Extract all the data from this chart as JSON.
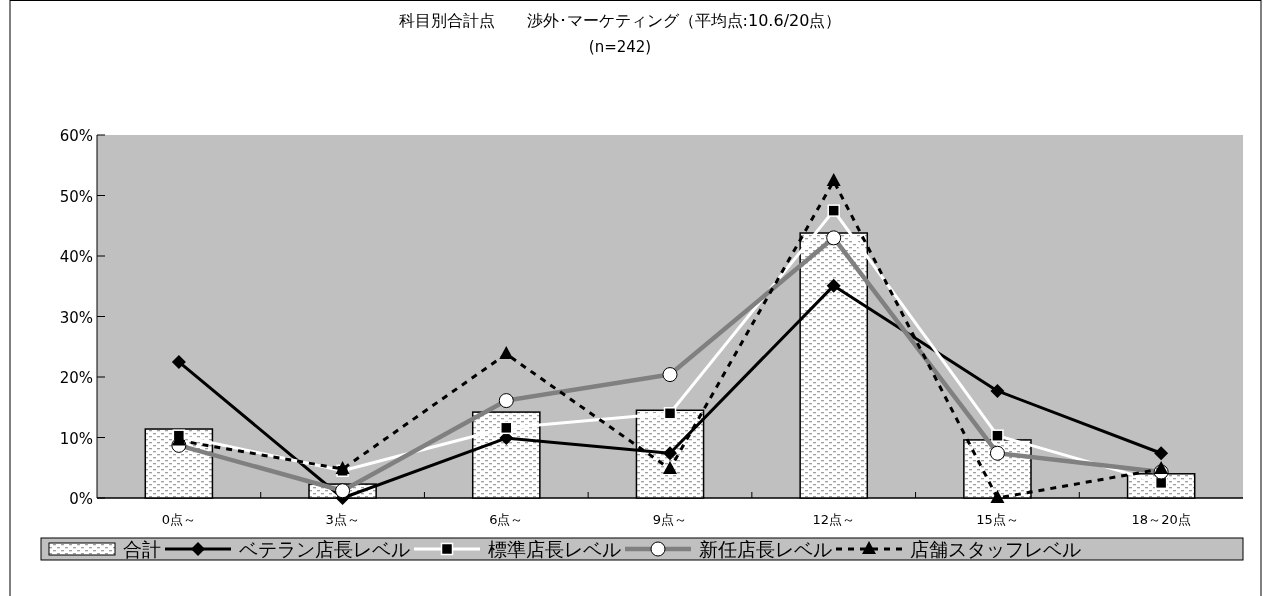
{
  "chart_data": {
    "type": "bar",
    "title": "科目別合計点　　渉外･マーケティング（平均点:10.6/20点）",
    "subtitle": "(n=242)",
    "categories": [
      "0点～",
      "3点～",
      "6点～",
      "9点～",
      "12点～",
      "15点～",
      "18～20点"
    ],
    "ylim": [
      0,
      60
    ],
    "yticks": [
      {
        "value": 0,
        "label": "0%"
      },
      {
        "value": 10,
        "label": "10%"
      },
      {
        "value": 20,
        "label": "20%"
      },
      {
        "value": 30,
        "label": "30%"
      },
      {
        "value": 40,
        "label": "40%"
      },
      {
        "value": 50,
        "label": "50%"
      },
      {
        "value": 60,
        "label": "60%"
      }
    ],
    "grid": false,
    "legend": "bottom",
    "series": [
      {
        "name": "合計",
        "color": "#000000",
        "values": [
          11.4,
          2.3,
          14.2,
          14.5,
          43.8,
          9.6,
          4.0
        ]
      },
      {
        "name": "ベテラン店長レベル",
        "type": "line",
        "color": "#000000",
        "marker": "diamond",
        "line_style": "solid",
        "values": [
          22.5,
          0,
          9.9,
          7.4,
          35.1,
          17.7,
          7.4
        ]
      },
      {
        "name": "標準店長レベル",
        "type": "line",
        "color": "#ffffff",
        "marker": "square",
        "line_style": "solid",
        "values": [
          10.3,
          4.5,
          11.6,
          14.0,
          47.5,
          10.3,
          2.5
        ]
      },
      {
        "name": "新任店長レベル",
        "type": "line",
        "color": "#808080",
        "marker": "circle",
        "line_style": "solid",
        "values": [
          8.7,
          1.2,
          16.1,
          20.4,
          43.0,
          7.4,
          4.3
        ]
      },
      {
        "name": "店舗スタッフレベル",
        "type": "line",
        "color": "#000000",
        "marker": "triangle",
        "line_style": "dashed",
        "values": [
          9.5,
          4.8,
          23.8,
          4.8,
          52.4,
          0,
          4.8
        ]
      }
    ]
  }
}
